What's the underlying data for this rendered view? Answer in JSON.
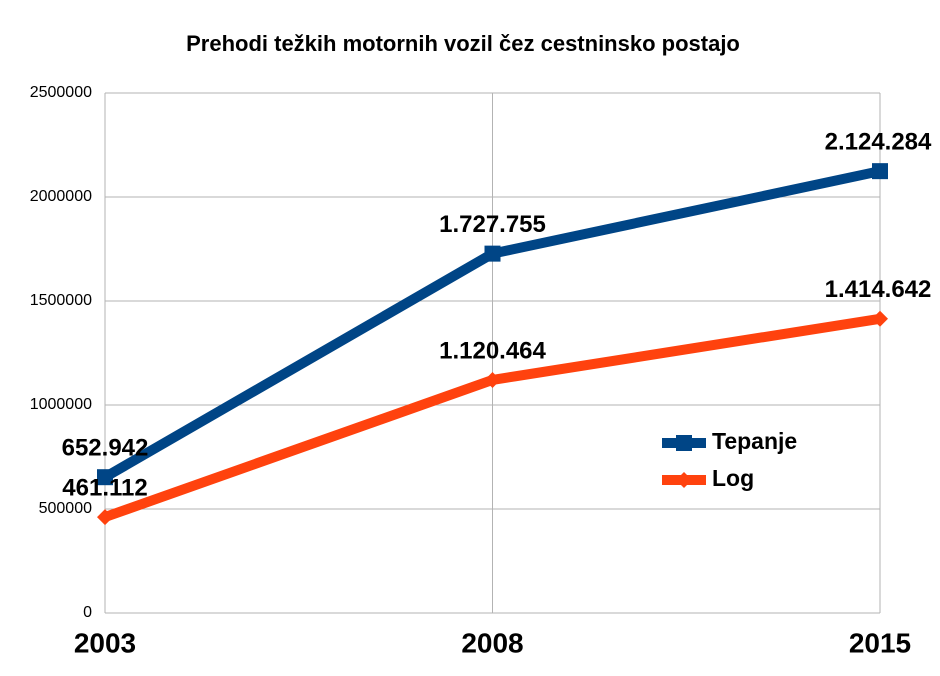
{
  "chart_data": {
    "type": "line",
    "title": "Prehodi težkih motornih vozil čez cestninsko postajo",
    "categories": [
      "2003",
      "2008",
      "2015"
    ],
    "series": [
      {
        "name": "Tepanje",
        "color": "#004586",
        "marker": "square",
        "values": [
          652942,
          1727755,
          2124284
        ],
        "value_labels": [
          "652.942",
          "1.727.755",
          "2.124.284"
        ]
      },
      {
        "name": "Log",
        "color": "#ff420e",
        "marker": "diamond",
        "values": [
          461112,
          1120464,
          1414642
        ],
        "value_labels": [
          "461.112",
          "1.120.464",
          "1.414.642"
        ]
      }
    ],
    "ylim": [
      0,
      2500000
    ],
    "yticks": [
      0,
      500000,
      1000000,
      1500000,
      2000000,
      2500000
    ],
    "grid": true
  }
}
